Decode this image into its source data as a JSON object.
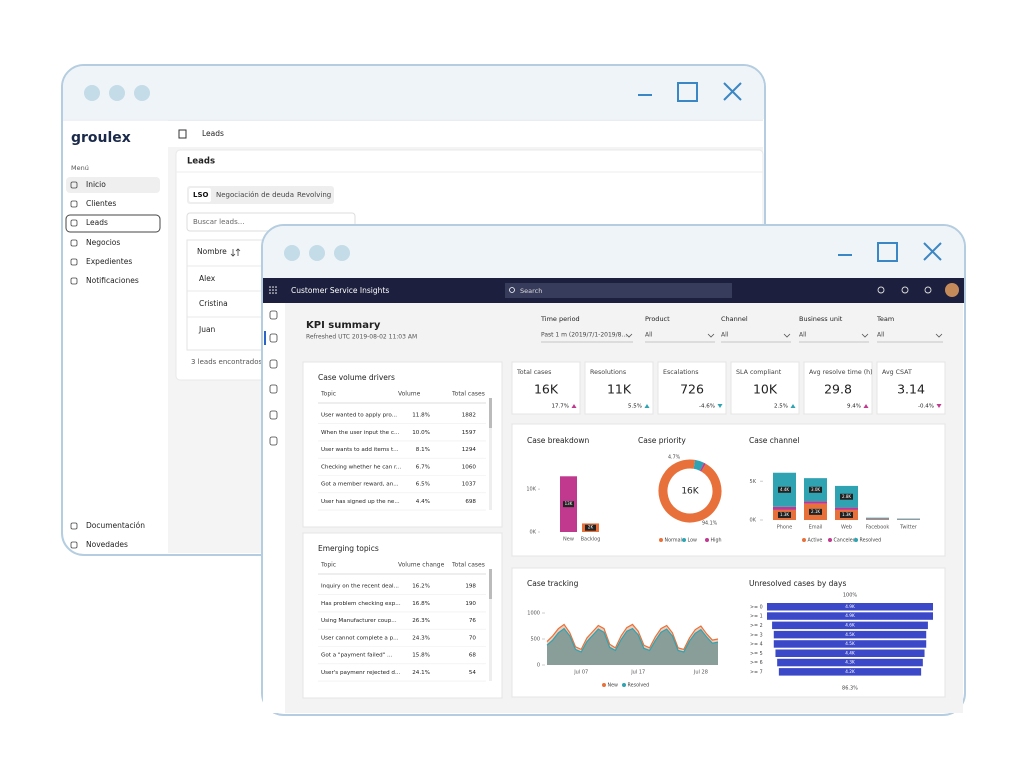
{
  "back_window": {
    "logo": "groulex",
    "menu_label": "Menú",
    "menu": [
      "Inicio",
      "Clientes",
      "Leads",
      "Negocios",
      "Expedientes",
      "Notificaciones"
    ],
    "footer_menu": [
      "Documentación",
      "Novedades"
    ],
    "breadcrumb": "Leads",
    "page_title": "Leads",
    "tabs": [
      "LSO",
      "Negociación de deuda",
      "Revolving"
    ],
    "search_placeholder": "Buscar leads...",
    "table": {
      "header": "Nombre",
      "rows": [
        "Alex",
        "Cristina",
        "Juan"
      ]
    },
    "footer": "3 leads encontrados"
  },
  "front_window": {
    "app_title": "Customer Service Insights",
    "search_placeholder": "Search",
    "page_title": "KPI summary",
    "refreshed": "Refreshed UTC 2019-08-02 11:03 AM",
    "filters": [
      {
        "label": "Time period",
        "value": "Past 1 m (2019/7/1-2019/8..."
      },
      {
        "label": "Product",
        "value": "All"
      },
      {
        "label": "Channel",
        "value": "All"
      },
      {
        "label": "Business unit",
        "value": "All"
      },
      {
        "label": "Team",
        "value": "All"
      }
    ],
    "kpis": [
      {
        "label": "Total cases",
        "value": "16K",
        "change": "17.7%",
        "trend": "up",
        "color": "#c0398f"
      },
      {
        "label": "Resolutions",
        "value": "11K",
        "change": "5.5%",
        "trend": "up",
        "color": "#2fa3b2"
      },
      {
        "label": "Escalations",
        "value": "726",
        "change": "-4.6%",
        "trend": "down",
        "color": "#2fa3b2"
      },
      {
        "label": "SLA compliant",
        "value": "10K",
        "change": "2.5%",
        "trend": "up",
        "color": "#2fa3b2"
      },
      {
        "label": "Avg resolve time (h)",
        "value": "29.8",
        "change": "9.4%",
        "trend": "up",
        "color": "#c0398f"
      },
      {
        "label": "Avg CSAT",
        "value": "3.14",
        "change": "-0.4%",
        "trend": "down",
        "color": "#c0398f"
      }
    ],
    "drivers": {
      "title": "Case volume drivers",
      "columns": [
        "Topic",
        "Volume",
        "Total cases"
      ],
      "rows": [
        [
          "User wanted to apply pro...",
          "11.8%",
          1882
        ],
        [
          "When the user input the c...",
          "10.0%",
          1597
        ],
        [
          "User wants to add items t...",
          "8.1%",
          1294
        ],
        [
          "Checking whether he can r...",
          "6.7%",
          1060
        ],
        [
          "Got a member reward, an...",
          "6.5%",
          1037
        ],
        [
          "User has signed up the ne...",
          "4.4%",
          698
        ]
      ]
    },
    "emerging": {
      "title": "Emerging topics",
      "columns": [
        "Topic",
        "Volume change",
        "Total cases"
      ],
      "rows": [
        [
          "Inquiry on the recent deal...",
          "16.2%",
          198
        ],
        [
          "Has problem checking exp...",
          "16.8%",
          190
        ],
        [
          "Using Manufacturer coup...",
          "26.3%",
          76
        ],
        [
          "User cannot complete a p...",
          "24.3%",
          70
        ],
        [
          "Got a \"payment failed\" ...",
          "15.8%",
          68
        ],
        [
          "User's paymenr rejected d...",
          "24.1%",
          54
        ]
      ]
    },
    "breakdown": {
      "type": "bar",
      "title": "Case breakdown",
      "categories": [
        "New",
        "Backlog"
      ],
      "values": [
        13000,
        2000
      ],
      "value_labels": [
        "13K",
        "2K"
      ],
      "colors": [
        "#c0398f",
        "#e8703a"
      ],
      "ylim": [
        0,
        14000
      ],
      "yticks": [
        {
          "value": 10000,
          "label": "10K"
        },
        {
          "value": 0,
          "label": "0K"
        }
      ]
    },
    "priority": {
      "type": "donut",
      "title": "Case priority",
      "center_label": "16K",
      "categories": [
        "Normal",
        "Low",
        "High"
      ],
      "values": [
        94.1,
        4.7,
        1.2
      ],
      "value_labels": [
        "94.1%",
        "4.7%",
        null
      ],
      "colors": [
        "#e8703a",
        "#2fa3b2",
        "#c0398f"
      ]
    },
    "channel": {
      "type": "stacked-bar",
      "title": "Case channel",
      "categories": [
        "Phone",
        "Email",
        "Web",
        "Facebook",
        "Twitter"
      ],
      "ylim": [
        0,
        8000
      ],
      "yticks": [
        {
          "value": 5000,
          "label": "5K"
        },
        {
          "value": 0,
          "label": "0K"
        }
      ],
      "series": [
        {
          "name": "Active",
          "color": "#e8703a",
          "values": [
            1300,
            2100,
            1300,
            100,
            50
          ],
          "value_labels": [
            "1.3K",
            "2.1K",
            "1.3K",
            null,
            null
          ]
        },
        {
          "name": "Canceled",
          "color": "#c0398f",
          "values": [
            400,
            300,
            300,
            50,
            30
          ]
        },
        {
          "name": "Resolved",
          "color": "#2fa3b2",
          "values": [
            4400,
            3000,
            2800,
            150,
            100
          ],
          "value_labels": [
            "4.4K",
            "3.0K",
            "2.8K",
            null,
            null
          ]
        }
      ]
    },
    "tracking": {
      "type": "area",
      "title": "Case tracking",
      "categories": [
        null,
        null,
        null,
        null,
        null,
        null,
        "Jul 07",
        null,
        null,
        null,
        null,
        null,
        null,
        null,
        null,
        null,
        "Jul 17",
        null,
        null,
        null,
        null,
        null,
        null,
        null,
        null,
        null,
        null,
        "Jul 28",
        null,
        null,
        null
      ],
      "ylim": [
        0,
        1000
      ],
      "yticks": [
        0,
        500,
        1000
      ],
      "series": [
        {
          "name": "New",
          "color": "#e8703a",
          "values": [
            450,
            560,
            700,
            780,
            620,
            350,
            300,
            520,
            640,
            760,
            700,
            400,
            330,
            560,
            720,
            780,
            650,
            380,
            330,
            540,
            700,
            760,
            620,
            330,
            300,
            520,
            680,
            750,
            600,
            480,
            500
          ]
        },
        {
          "name": "Resolved",
          "color": "#2fa3b2",
          "values": [
            380,
            480,
            620,
            700,
            560,
            300,
            250,
            450,
            570,
            690,
            630,
            340,
            280,
            490,
            650,
            700,
            580,
            320,
            280,
            470,
            630,
            690,
            560,
            280,
            250,
            460,
            610,
            680,
            540,
            420,
            440
          ]
        }
      ]
    },
    "funnel": {
      "type": "funnel",
      "title": "Unresolved cases by days",
      "top_label": "100%",
      "bottom_label": "86.3%",
      "color": "#3b49c9",
      "categories": [
        ">= 0",
        ">= 1",
        ">= 2",
        ">= 3",
        ">= 4",
        ">= 5",
        ">= 6",
        ">= 7"
      ],
      "values": [
        4900,
        4900,
        4600,
        4500,
        4500,
        4400,
        4300,
        4200
      ],
      "value_labels": [
        "4.9K",
        "4.9K",
        "4.6K",
        "4.5K",
        "4.5K",
        "4.4K",
        "4.3K",
        "4.2K"
      ]
    }
  }
}
